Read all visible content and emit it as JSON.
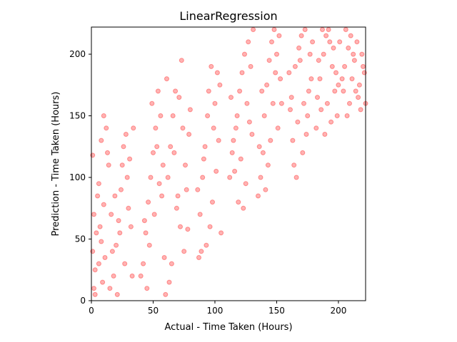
{
  "chart_data": {
    "type": "scatter",
    "title": "LinearRegression",
    "xlabel": "Actual - Time Taken (Hours)",
    "ylabel": "Prediction - Time Taken (Hours)",
    "xlim": [
      0,
      222
    ],
    "ylim": [
      0,
      222
    ],
    "xticks": [
      0,
      50,
      100,
      150,
      200
    ],
    "yticks": [
      0,
      50,
      100,
      150,
      200
    ],
    "grid": false,
    "legend": "none",
    "marker_color": "#ff0000",
    "marker_alpha": 0.12,
    "series": [
      {
        "points": [
          [
            2,
            10
          ],
          [
            3,
            25
          ],
          [
            1,
            40
          ],
          [
            4,
            55
          ],
          [
            2,
            70
          ],
          [
            5,
            85
          ],
          [
            3,
            5
          ],
          [
            6,
            30
          ],
          [
            7,
            60
          ],
          [
            1,
            118
          ],
          [
            8,
            48
          ],
          [
            9,
            15
          ],
          [
            10,
            78
          ],
          [
            6,
            95
          ],
          [
            11,
            35
          ],
          [
            12,
            140
          ],
          [
            13,
            120
          ],
          [
            10,
            150
          ],
          [
            8,
            130
          ],
          [
            14,
            110
          ],
          [
            18,
            20
          ],
          [
            20,
            45
          ],
          [
            22,
            65
          ],
          [
            24,
            90
          ],
          [
            25,
            110
          ],
          [
            26,
            125
          ],
          [
            28,
            135
          ],
          [
            21,
            5
          ],
          [
            27,
            30
          ],
          [
            30,
            75
          ],
          [
            29,
            100
          ],
          [
            23,
            55
          ],
          [
            19,
            85
          ],
          [
            31,
            115
          ],
          [
            32,
            60
          ],
          [
            17,
            40
          ],
          [
            15,
            10
          ],
          [
            16,
            70
          ],
          [
            33,
            20
          ],
          [
            34,
            140
          ],
          [
            42,
            30
          ],
          [
            44,
            55
          ],
          [
            46,
            80
          ],
          [
            48,
            100
          ],
          [
            50,
            120
          ],
          [
            52,
            140
          ],
          [
            49,
            160
          ],
          [
            54,
            170
          ],
          [
            55,
            95
          ],
          [
            51,
            70
          ],
          [
            47,
            45
          ],
          [
            53,
            125
          ],
          [
            45,
            10
          ],
          [
            56,
            150
          ],
          [
            58,
            110
          ],
          [
            40,
            20
          ],
          [
            43,
            65
          ],
          [
            57,
            85
          ],
          [
            59,
            35
          ],
          [
            60,
            5
          ],
          [
            62,
            100
          ],
          [
            64,
            125
          ],
          [
            66,
            150
          ],
          [
            68,
            170
          ],
          [
            70,
            85
          ],
          [
            72,
            60
          ],
          [
            75,
            40
          ],
          [
            76,
            110
          ],
          [
            78,
            58
          ],
          [
            74,
            140
          ],
          [
            73,
            195
          ],
          [
            71,
            165
          ],
          [
            67,
            120
          ],
          [
            65,
            30
          ],
          [
            69,
            75
          ],
          [
            77,
            90
          ],
          [
            79,
            135
          ],
          [
            63,
            15
          ],
          [
            80,
            155
          ],
          [
            61,
            180
          ],
          [
            90,
            100
          ],
          [
            92,
            125
          ],
          [
            94,
            150
          ],
          [
            95,
            170
          ],
          [
            97,
            190
          ],
          [
            98,
            80
          ],
          [
            96,
            60
          ],
          [
            93,
            45
          ],
          [
            91,
            115
          ],
          [
            99,
            140
          ],
          [
            100,
            160
          ],
          [
            89,
            40
          ],
          [
            88,
            70
          ],
          [
            101,
            105
          ],
          [
            102,
            185
          ],
          [
            87,
            35
          ],
          [
            103,
            130
          ],
          [
            104,
            175
          ],
          [
            86,
            90
          ],
          [
            105,
            55
          ],
          [
            115,
            130
          ],
          [
            118,
            150
          ],
          [
            120,
            170
          ],
          [
            122,
            185
          ],
          [
            124,
            200
          ],
          [
            125,
            95
          ],
          [
            121,
            115
          ],
          [
            119,
            80
          ],
          [
            117,
            140
          ],
          [
            126,
            160
          ],
          [
            123,
            75
          ],
          [
            116,
            105
          ],
          [
            127,
            210
          ],
          [
            114,
            120
          ],
          [
            128,
            145
          ],
          [
            113,
            165
          ],
          [
            129,
            190
          ],
          [
            112,
            100
          ],
          [
            130,
            135
          ],
          [
            131,
            220
          ],
          [
            140,
            150
          ],
          [
            142,
            175
          ],
          [
            144,
            195
          ],
          [
            146,
            210
          ],
          [
            148,
            220
          ],
          [
            145,
            130
          ],
          [
            143,
            110
          ],
          [
            141,
            90
          ],
          [
            147,
            160
          ],
          [
            149,
            185
          ],
          [
            139,
            120
          ],
          [
            150,
            200
          ],
          [
            138,
            170
          ],
          [
            151,
            140
          ],
          [
            137,
            100
          ],
          [
            152,
            215
          ],
          [
            136,
            125
          ],
          [
            153,
            180
          ],
          [
            135,
            85
          ],
          [
            154,
            160
          ],
          [
            162,
            165
          ],
          [
            165,
            190
          ],
          [
            168,
            205
          ],
          [
            170,
            215
          ],
          [
            172,
            160
          ],
          [
            175,
            150
          ],
          [
            178,
            180
          ],
          [
            174,
            135
          ],
          [
            171,
            120
          ],
          [
            167,
            145
          ],
          [
            164,
            110
          ],
          [
            169,
            195
          ],
          [
            173,
            220
          ],
          [
            176,
            170
          ],
          [
            166,
            100
          ],
          [
            177,
            200
          ],
          [
            163,
            130
          ],
          [
            179,
            210
          ],
          [
            161,
            155
          ],
          [
            160,
            185
          ],
          [
            185,
            180
          ],
          [
            188,
            200
          ],
          [
            190,
            215
          ],
          [
            192,
            220
          ],
          [
            195,
            190
          ],
          [
            197,
            170
          ],
          [
            194,
            145
          ],
          [
            191,
            160
          ],
          [
            189,
            135
          ],
          [
            196,
            205
          ],
          [
            193,
            210
          ],
          [
            186,
            155
          ],
          [
            198,
            185
          ],
          [
            187,
            220
          ],
          [
            199,
            150
          ],
          [
            184,
            195
          ],
          [
            200,
            175
          ],
          [
            183,
            165
          ],
          [
            201,
            210
          ],
          [
            182,
            140
          ],
          [
            205,
            190
          ],
          [
            208,
            205
          ],
          [
            210,
            215
          ],
          [
            212,
            200
          ],
          [
            214,
            170
          ],
          [
            216,
            165
          ],
          [
            218,
            155
          ],
          [
            220,
            190
          ],
          [
            211,
            180
          ],
          [
            213,
            195
          ],
          [
            215,
            210
          ],
          [
            217,
            175
          ],
          [
            219,
            200
          ],
          [
            209,
            160
          ],
          [
            221,
            185
          ],
          [
            207,
            150
          ],
          [
            206,
            220
          ],
          [
            204,
            170
          ],
          [
            203,
            180
          ],
          [
            222,
            160
          ]
        ]
      }
    ]
  }
}
